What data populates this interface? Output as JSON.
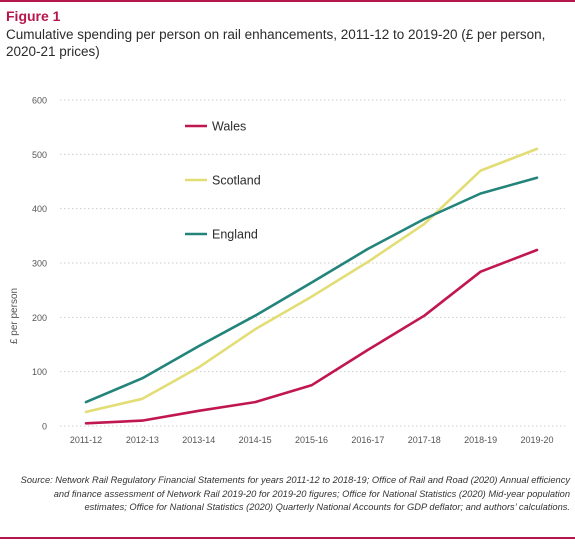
{
  "figure": {
    "label": "Figure 1",
    "title": "Cumulative spending per person on rail enhancements, 2011-12 to 2019-20 (£ per person, 2020-21 prices)",
    "source": "Source: Network Rail Regulatory Financial Statements for years 2011-12 to 2018-19; Office of Rail and Road (2020) Annual efficiency and finance assessment of Network Rail 2019-20 for 2019-20 figures; Office for National Statistics (2020) Mid-year population estimates; Office for National Statistics (2020) Quarterly National Accounts for GDP deflator; and authors’ calculations."
  },
  "colors": {
    "accent": "#b5174c",
    "wales": "#c0174f",
    "scotland": "#e3dd76",
    "england": "#22847a",
    "grid": "#cfcfcf",
    "tick_text": "#555555"
  },
  "chart_data": {
    "type": "line",
    "x": [
      "2011-12",
      "2012-13",
      "2013-14",
      "2014-15",
      "2015-16",
      "2016-17",
      "2017-18",
      "2018-19",
      "2019-20"
    ],
    "ylabel": "£ per person",
    "xlabel": "",
    "ylim": [
      0,
      600
    ],
    "yticks": [
      0,
      100,
      200,
      300,
      400,
      500,
      600
    ],
    "grid": "horizontal dotted",
    "legend": "inside top-left",
    "series": [
      {
        "name": "Wales",
        "color": "#c0174f",
        "values": [
          5,
          10,
          28,
          44,
          75,
          140,
          203,
          284,
          324
        ]
      },
      {
        "name": "Scotland",
        "color": "#e3dd76",
        "values": [
          26,
          50,
          108,
          178,
          238,
          302,
          372,
          470,
          510
        ]
      },
      {
        "name": "England",
        "color": "#22847a",
        "values": [
          44,
          88,
          147,
          203,
          264,
          326,
          381,
          428,
          457
        ]
      }
    ]
  }
}
